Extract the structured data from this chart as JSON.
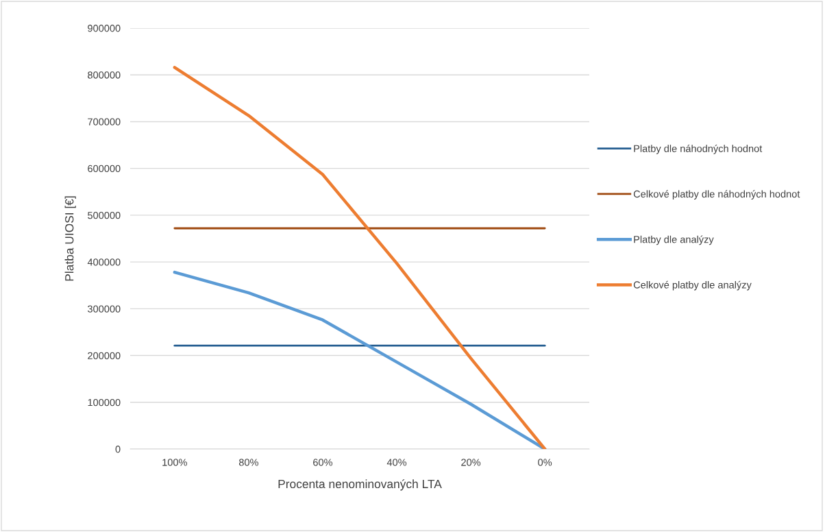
{
  "chart_data": {
    "type": "line",
    "xlabel": "Procenta nenominovaných LTA",
    "ylabel": "Platba UIOSI [€]",
    "categories": [
      "100%",
      "80%",
      "60%",
      "40%",
      "20%",
      "0%"
    ],
    "series": [
      {
        "name": "Platby dle náhodných hodnot",
        "color": "#255e91",
        "values": [
          221000,
          221000,
          221000,
          221000,
          221000,
          221000
        ]
      },
      {
        "name": "Celkové platby dle náhodných hodnot",
        "color": "#9e480e",
        "values": [
          472000,
          472000,
          472000,
          472000,
          472000,
          472000
        ]
      },
      {
        "name": "Platby dle analýzy",
        "color": "#5b9bd5",
        "values": [
          378000,
          334000,
          276000,
          186000,
          96000,
          0
        ]
      },
      {
        "name": "Celkové platby dle analýzy",
        "color": "#ed7d31",
        "values": [
          816000,
          713000,
          587000,
          397000,
          194000,
          0
        ]
      }
    ],
    "ylim": [
      0,
      900000
    ],
    "yticks": [
      0,
      100000,
      200000,
      300000,
      400000,
      500000,
      600000,
      700000,
      800000,
      900000
    ],
    "grid": "y",
    "legend": "right",
    "marker": "none",
    "line_style": "solid"
  }
}
